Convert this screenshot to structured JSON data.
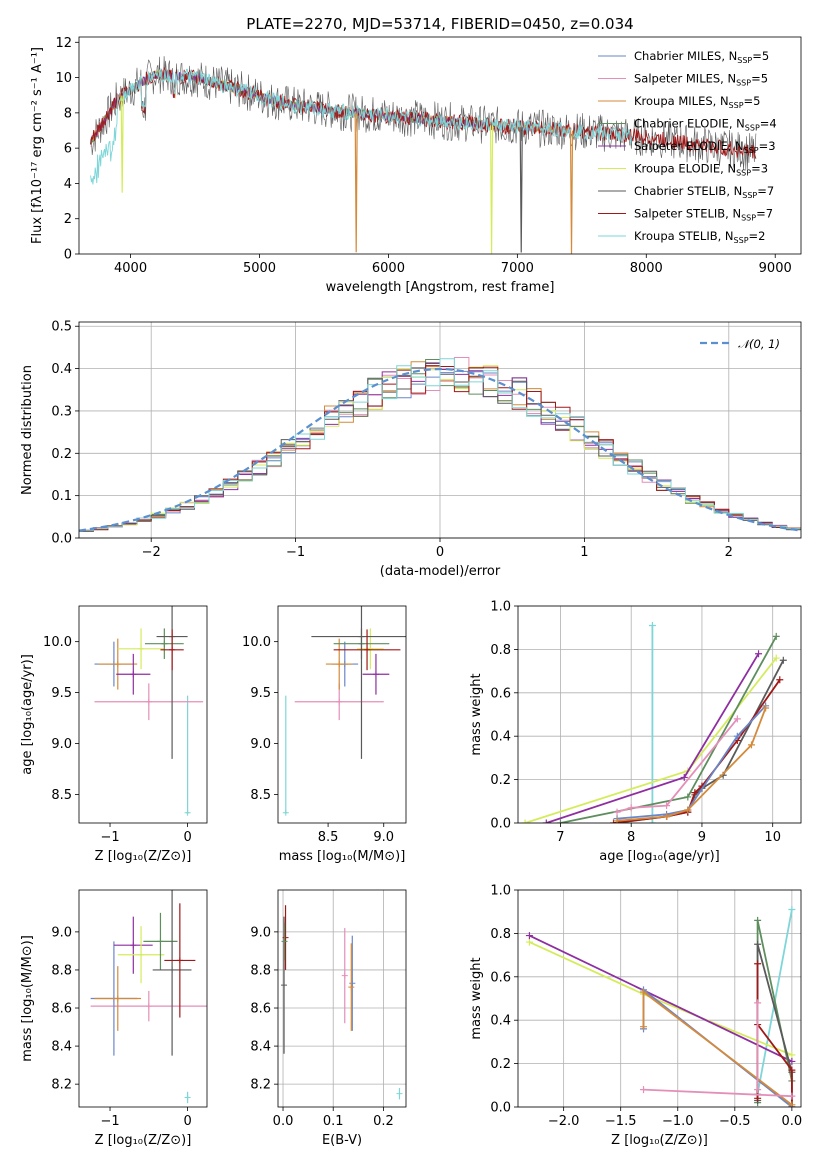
{
  "colors": {
    "chabrier_miles": "#6a86c8",
    "salpeter_miles": "#e48fb8",
    "kroupa_miles": "#d48a3a",
    "chabrier_elodie": "#5e8e5e",
    "salpeter_elodie": "#8e2ea0",
    "kroupa_elodie": "#d4ec5c",
    "chabrier_stelib": "#5a5a5a",
    "salpeter_stelib": "#a01818",
    "kroupa_stelib": "#7ed6d8",
    "gaussian": "#5a8fd0"
  },
  "chart_data": [
    {
      "id": "spectrum",
      "type": "line",
      "title": "PLATE=2270, MJD=53714, FIBERID=0450, z=0.034",
      "xlabel": "wavelength [Angstrom, rest frame]",
      "ylabel": "Flux [fλ10⁻¹⁷ erg cm⁻² s⁻¹ A⁻¹]",
      "xlim": [
        3600,
        9200
      ],
      "ylim": [
        0,
        12.3
      ],
      "xticks": [
        4000,
        5000,
        6000,
        7000,
        8000,
        9000
      ],
      "yticks": [
        0,
        2,
        4,
        6,
        8,
        10,
        12
      ],
      "legend_position": "upper-right",
      "legend": [
        {
          "key": "chabrier_miles",
          "label": "Chabrier MILES, N",
          "sub": "SSP",
          "suffix": "=5"
        },
        {
          "key": "salpeter_miles",
          "label": "Salpeter MILES, N",
          "sub": "SSP",
          "suffix": "=5"
        },
        {
          "key": "kroupa_miles",
          "label": "Kroupa MILES, N",
          "sub": "SSP",
          "suffix": "=5"
        },
        {
          "key": "chabrier_elodie",
          "label": "Chabrier ELODIE, N",
          "sub": "SSP",
          "suffix": "=4"
        },
        {
          "key": "salpeter_elodie",
          "label": "Salpeter ELODIE, N",
          "sub": "SSP",
          "suffix": "=3"
        },
        {
          "key": "kroupa_elodie",
          "label": "Kroupa ELODIE, N",
          "sub": "SSP",
          "suffix": "=3"
        },
        {
          "key": "chabrier_stelib",
          "label": "Chabrier STELIB, N",
          "sub": "SSP",
          "suffix": "=7"
        },
        {
          "key": "salpeter_stelib",
          "label": "Salpeter STELIB, N",
          "sub": "SSP",
          "suffix": "=7"
        },
        {
          "key": "kroupa_stelib",
          "label": "Kroupa STELIB, N",
          "sub": "SSP",
          "suffix": "=2"
        }
      ],
      "continuum": [
        [
          3680,
          6.2
        ],
        [
          3800,
          7.6
        ],
        [
          3900,
          8.8
        ],
        [
          4000,
          9.3
        ],
        [
          4100,
          9.8
        ],
        [
          4200,
          10.2
        ],
        [
          4300,
          10.1
        ],
        [
          4500,
          10.0
        ],
        [
          4700,
          9.6
        ],
        [
          4900,
          9.2
        ],
        [
          5100,
          8.7
        ],
        [
          5300,
          8.4
        ],
        [
          5600,
          8.1
        ],
        [
          5900,
          7.9
        ],
        [
          6200,
          7.7
        ],
        [
          6500,
          7.5
        ],
        [
          6800,
          7.3
        ],
        [
          7200,
          7.1
        ],
        [
          7600,
          6.9
        ],
        [
          8000,
          6.6
        ],
        [
          8400,
          6.2
        ],
        [
          8800,
          5.8
        ],
        [
          8900,
          5.7
        ]
      ],
      "dips": [
        {
          "x": 3935,
          "depth": 5.5,
          "key": "kroupa_elodie"
        },
        {
          "x": 5750,
          "depth": 7.9,
          "key": "kroupa_miles"
        },
        {
          "x": 6800,
          "depth": 7.3,
          "key": "kroupa_elodie"
        },
        {
          "x": 7030,
          "depth": 7.1,
          "key": "chabrier_stelib"
        },
        {
          "x": 7420,
          "depth": 7.0,
          "key": "kroupa_miles"
        }
      ]
    },
    {
      "id": "residuals",
      "type": "histogram",
      "xlabel": "(data-model)/error",
      "ylabel": "Normed distribution",
      "xlim": [
        -2.5,
        2.5
      ],
      "ylim": [
        0,
        0.51
      ],
      "xticks": [
        -2,
        -1,
        0,
        1,
        2
      ],
      "yticks": [
        0.0,
        0.1,
        0.2,
        0.3,
        0.4,
        0.5
      ],
      "legend_position": "upper-right",
      "legend_label": "𝒩(0, 1)",
      "bin_width": 0.1
    },
    {
      "id": "age_vs_Z",
      "type": "scatter",
      "xlabel": "Z [log₁₀(Z/Z⊙)]",
      "ylabel": "age  [log₁₀(age/yr)]",
      "xlim": [
        -1.4,
        0.25
      ],
      "ylim": [
        8.22,
        10.35
      ],
      "xticks": [
        -1,
        0
      ],
      "yticks": [
        8.5,
        9.0,
        9.5,
        10.0
      ],
      "points": [
        {
          "key": "kroupa_stelib",
          "x": 0.0,
          "y": 8.32,
          "xerr": 0.02,
          "yerr_lo": 0.0,
          "yerr_hi": 1.15
        },
        {
          "key": "salpeter_miles",
          "x": -0.5,
          "y": 9.41,
          "xerr": 0.7,
          "yerr": 0.18
        },
        {
          "key": "chabrier_miles",
          "x": -0.95,
          "y": 9.78,
          "xerr": 0.25,
          "yerr": 0.22
        },
        {
          "key": "kroupa_miles",
          "x": -0.9,
          "y": 9.78,
          "xerr": 0.25,
          "yerr": 0.25
        },
        {
          "key": "salpeter_elodie",
          "x": -0.7,
          "y": 9.68,
          "xerr": 0.22,
          "yerr": 0.2
        },
        {
          "key": "kroupa_elodie",
          "x": -0.6,
          "y": 9.93,
          "xerr": 0.3,
          "yerr": 0.2
        },
        {
          "key": "chabrier_elodie",
          "x": -0.3,
          "y": 9.98,
          "xerr": 0.25,
          "yerr": 0.15
        },
        {
          "key": "chabrier_stelib",
          "x": -0.2,
          "y": 10.05,
          "xerr": 0.2,
          "yerr": 1.2
        },
        {
          "key": "salpeter_stelib",
          "x": -0.2,
          "y": 9.92,
          "xerr": 0.15,
          "yerr": 0.2
        }
      ]
    },
    {
      "id": "age_vs_mass",
      "type": "scatter",
      "xlabel": "mass [log₁₀(M/M⊙)]",
      "ylabel": "",
      "xlim": [
        8.05,
        9.2
      ],
      "ylim": [
        8.22,
        10.35
      ],
      "xticks": [
        8.5,
        9.0
      ],
      "yticks": [
        8.5,
        9.0,
        9.5,
        10.0
      ],
      "points": [
        {
          "key": "kroupa_stelib",
          "x": 8.12,
          "y": 8.32,
          "xerr": 0.01,
          "yerr_lo": 0.0,
          "yerr_hi": 1.15
        },
        {
          "key": "salpeter_miles",
          "x": 8.6,
          "y": 9.41,
          "xerr": 0.4,
          "yerr": 0.18
        },
        {
          "key": "chabrier_miles",
          "x": 8.65,
          "y": 9.78,
          "xerr": 0.12,
          "yerr": 0.22
        },
        {
          "key": "kroupa_miles",
          "x": 8.6,
          "y": 9.78,
          "xerr": 0.12,
          "yerr": 0.25
        },
        {
          "key": "salpeter_elodie",
          "x": 8.93,
          "y": 9.68,
          "xerr": 0.12,
          "yerr": 0.2
        },
        {
          "key": "kroupa_elodie",
          "x": 8.88,
          "y": 9.93,
          "xerr": 0.12,
          "yerr": 0.2
        },
        {
          "key": "chabrier_elodie",
          "x": 8.8,
          "y": 9.98,
          "xerr": 0.25,
          "yerr": 0.15
        },
        {
          "key": "chabrier_stelib",
          "x": 8.8,
          "y": 10.05,
          "xerr": 0.45,
          "yerr": 1.2
        },
        {
          "key": "salpeter_stelib",
          "x": 8.85,
          "y": 9.92,
          "xerr": 0.3,
          "yerr": 0.2
        }
      ]
    },
    {
      "id": "weight_vs_age",
      "type": "line",
      "xlabel": "age  [log₁₀(age/yr)]",
      "ylabel": "mass weight",
      "xlim": [
        6.4,
        10.4
      ],
      "ylim": [
        0,
        1.0
      ],
      "xticks": [
        7,
        8,
        9,
        10
      ],
      "yticks": [
        0.0,
        0.2,
        0.4,
        0.6,
        0.8,
        1.0
      ],
      "series": [
        {
          "key": "kroupa_stelib",
          "x": [
            8.3,
            8.3
          ],
          "y": [
            0.0,
            0.91
          ]
        },
        {
          "key": "kroupa_elodie",
          "x": [
            6.5,
            8.8,
            10.05
          ],
          "y": [
            0.0,
            0.24,
            0.76
          ]
        },
        {
          "key": "salpeter_elodie",
          "x": [
            6.8,
            8.75,
            9.8
          ],
          "y": [
            0.0,
            0.21,
            0.78
          ]
        },
        {
          "key": "chabrier_elodie",
          "x": [
            7.0,
            8.8,
            10.05
          ],
          "y": [
            0.0,
            0.12,
            0.86
          ]
        },
        {
          "key": "chabrier_stelib",
          "x": [
            7.8,
            8.5,
            8.8,
            8.9,
            9.0,
            9.3,
            10.15
          ],
          "y": [
            0.0,
            0.03,
            0.05,
            0.13,
            0.16,
            0.22,
            0.75
          ]
        },
        {
          "key": "salpeter_stelib",
          "x": [
            7.75,
            8.5,
            8.8,
            8.9,
            9.0,
            9.5,
            10.1
          ],
          "y": [
            0.0,
            0.03,
            0.05,
            0.14,
            0.17,
            0.38,
            0.66
          ]
        },
        {
          "key": "chabrier_miles",
          "x": [
            7.8,
            8.5,
            8.8,
            9.5,
            9.9
          ],
          "y": [
            0.02,
            0.04,
            0.06,
            0.4,
            0.54
          ]
        },
        {
          "key": "kroupa_miles",
          "x": [
            7.8,
            8.5,
            8.8,
            9.7,
            9.9
          ],
          "y": [
            0.01,
            0.03,
            0.06,
            0.36,
            0.53
          ]
        },
        {
          "key": "salpeter_miles",
          "x": [
            7.8,
            8.0,
            8.5,
            9.5
          ],
          "y": [
            0.05,
            0.07,
            0.08,
            0.48
          ]
        }
      ]
    },
    {
      "id": "mass_vs_Z",
      "type": "scatter",
      "xlabel": "Z [log₁₀(Z/Z⊙)]",
      "ylabel": "mass [log₁₀(M/M⊙)]",
      "xlim": [
        -1.4,
        0.25
      ],
      "ylim": [
        8.08,
        9.22
      ],
      "xticks": [
        -1,
        0
      ],
      "yticks": [
        8.2,
        8.4,
        8.6,
        8.8,
        9.0
      ],
      "points": [
        {
          "key": "kroupa_stelib",
          "x": 0.0,
          "y": 8.13,
          "xerr": 0.02,
          "yerr": 0.03
        },
        {
          "key": "salpeter_miles",
          "x": -0.5,
          "y": 8.61,
          "xerr": 0.75,
          "yerr": 0.08
        },
        {
          "key": "chabrier_miles",
          "x": -0.95,
          "y": 8.65,
          "xerr": 0.3,
          "yerr": 0.3
        },
        {
          "key": "kroupa_miles",
          "x": -0.9,
          "y": 8.65,
          "xerr": 0.3,
          "yerr": 0.17
        },
        {
          "key": "salpeter_elodie",
          "x": -0.7,
          "y": 8.93,
          "xerr": 0.25,
          "yerr": 0.15
        },
        {
          "key": "kroupa_elodie",
          "x": -0.6,
          "y": 8.88,
          "xerr": 0.3,
          "yerr": 0.15
        },
        {
          "key": "chabrier_elodie",
          "x": -0.35,
          "y": 8.95,
          "xerr": 0.22,
          "yerr": 0.15
        },
        {
          "key": "chabrier_stelib",
          "x": -0.2,
          "y": 8.8,
          "xerr": 0.25,
          "yerr": 0.45
        },
        {
          "key": "salpeter_stelib",
          "x": -0.1,
          "y": 8.85,
          "xerr": 0.2,
          "yerr": 0.3
        }
      ]
    },
    {
      "id": "mass_vs_ebv",
      "type": "scatter",
      "xlabel": "E(B-V)",
      "ylabel": "",
      "xlim": [
        -0.01,
        0.245
      ],
      "ylim": [
        8.08,
        9.22
      ],
      "xticks": [
        0.0,
        0.1,
        0.2
      ],
      "yticks": [
        8.2,
        8.4,
        8.6,
        8.8,
        9.0
      ],
      "points": [
        {
          "key": "kroupa_stelib",
          "x": 0.232,
          "y": 8.15,
          "xerr": 0.0,
          "yerr": 0.03
        },
        {
          "key": "chabrier_stelib",
          "x": 0.002,
          "y": 8.72,
          "xerr": 0.0,
          "yerr": 0.36
        },
        {
          "key": "salpeter_stelib",
          "x": 0.005,
          "y": 8.97,
          "xerr": 0.0,
          "yerr": 0.17
        },
        {
          "key": "chabrier_elodie",
          "x": 0.003,
          "y": 8.95,
          "xerr": 0.0,
          "yerr": 0.1
        },
        {
          "key": "salpeter_miles",
          "x": 0.123,
          "y": 8.77,
          "xerr": 0.0,
          "yerr": 0.25
        },
        {
          "key": "chabrier_miles",
          "x": 0.138,
          "y": 8.73,
          "xerr": 0.0,
          "yerr": 0.25
        },
        {
          "key": "kroupa_miles",
          "x": 0.136,
          "y": 8.71,
          "xerr": 0.0,
          "yerr": 0.23
        }
      ]
    },
    {
      "id": "weight_vs_Z",
      "type": "line",
      "xlabel": "Z [log₁₀(Z/Z⊙)]",
      "ylabel": "mass weight",
      "xlim": [
        -2.4,
        0.08
      ],
      "ylim": [
        0,
        1.0
      ],
      "xticks": [
        -2.0,
        -1.5,
        -1.0,
        -0.5,
        0.0
      ],
      "yticks": [
        0.0,
        0.2,
        0.4,
        0.6,
        0.8,
        1.0
      ],
      "series": [
        {
          "key": "kroupa_stelib",
          "x": [
            -0.3,
            0.0
          ],
          "y": [
            0.06,
            0.91
          ]
        },
        {
          "key": "kroupa_elodie",
          "x": [
            -2.3,
            -1.3,
            0.0
          ],
          "y": [
            0.76,
            0.52,
            0.24
          ]
        },
        {
          "key": "salpeter_elodie",
          "x": [
            -2.3,
            0.0
          ],
          "y": [
            0.79,
            0.21
          ]
        },
        {
          "key": "chabrier_elodie",
          "x": [
            -0.3,
            -0.3,
            0.0
          ],
          "y": [
            0.02,
            0.86,
            0.12
          ]
        },
        {
          "key": "chabrier_stelib",
          "x": [
            -0.3,
            -0.3,
            0.0,
            0.0
          ],
          "y": [
            0.03,
            0.75,
            0.16,
            0.0
          ]
        },
        {
          "key": "salpeter_stelib",
          "x": [
            -0.3,
            -0.3,
            -0.3,
            0.0,
            0.0
          ],
          "y": [
            0.04,
            0.66,
            0.38,
            0.17,
            0.0
          ]
        },
        {
          "key": "chabrier_miles",
          "x": [
            -1.3,
            -1.3,
            0.0
          ],
          "y": [
            0.36,
            0.54,
            0.0
          ]
        },
        {
          "key": "kroupa_miles",
          "x": [
            -1.3,
            -1.3,
            0.0
          ],
          "y": [
            0.37,
            0.53,
            0.01
          ]
        },
        {
          "key": "salpeter_miles",
          "x": [
            -1.3,
            0.0
          ],
          "y": [
            0.08,
            0.05
          ]
        },
        {
          "key": "salpeter_miles",
          "x": [
            -0.3,
            -0.3
          ],
          "y": [
            0.08,
            0.48
          ]
        }
      ]
    }
  ]
}
